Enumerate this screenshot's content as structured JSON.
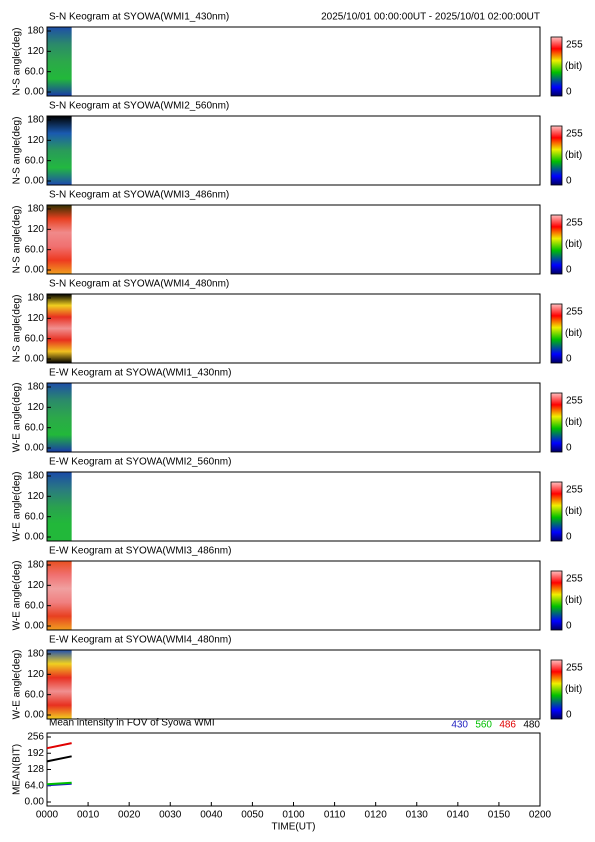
{
  "chart_data": [
    {
      "type": "keogram",
      "title": "S-N Keogram at SYOWA(WMI1_430nm)",
      "time_range": "2025/10/01 00:00:00UT - 2025/10/01 02:00:00UT",
      "ylabel": "N-S angle(deg)",
      "ylim": [
        0,
        180
      ],
      "yticks": [
        {
          "value": 0,
          "label": "0.00"
        },
        {
          "value": 60,
          "label": "60.0"
        },
        120,
        180
      ],
      "xlim": [
        0,
        120
      ],
      "x": [
        0,
        6
      ],
      "colors": [
        "#1e4ea8",
        "#2b8a6a",
        "#2ca84a",
        "#22b83a",
        "#1a3aa8"
      ],
      "clabel": "(bit)",
      "cticks": [
        0,
        255
      ]
    },
    {
      "type": "keogram",
      "title": "S-N Keogram at SYOWA(WMI2_560nm)",
      "ylabel": "N-S angle(deg)",
      "ylim": [
        0,
        180
      ],
      "yticks": [
        {
          "value": 0,
          "label": "0.00"
        },
        {
          "value": 60,
          "label": "60.0"
        },
        120,
        180
      ],
      "xlim": [
        0,
        120
      ],
      "x": [
        0,
        6
      ],
      "colors": [
        "#000000",
        "#1a5ab0",
        "#2a9a5a",
        "#22b840",
        "#1e48b0"
      ],
      "clabel": "(bit)",
      "cticks": [
        0,
        255
      ]
    },
    {
      "type": "keogram",
      "title": "S-N Keogram at SYOWA(WMI3_486nm)",
      "ylabel": "N-S angle(deg)",
      "ylim": [
        0,
        180
      ],
      "yticks": [
        {
          "value": 0,
          "label": "0.00"
        },
        {
          "value": 60,
          "label": "60.0"
        },
        120,
        180
      ],
      "xlim": [
        0,
        120
      ],
      "x": [
        0,
        6
      ],
      "colors": [
        "#303000",
        "#e84020",
        "#f08a8a",
        "#f07070",
        "#ee3a20",
        "#f0a020"
      ],
      "clabel": "(bit)",
      "cticks": [
        0,
        255
      ]
    },
    {
      "type": "keogram",
      "title": "S-N Keogram at SYOWA(WMI4_480nm)",
      "ylabel": "N-S angle(deg)",
      "ylim": [
        0,
        180
      ],
      "yticks": [
        {
          "value": 0,
          "label": "0.00"
        },
        {
          "value": 60,
          "label": "60.0"
        },
        120,
        180
      ],
      "xlim": [
        0,
        120
      ],
      "x": [
        0,
        6
      ],
      "colors": [
        "#000000",
        "#f0d020",
        "#e83020",
        "#f09090",
        "#e83020",
        "#f0c020",
        "#000000"
      ],
      "clabel": "(bit)",
      "cticks": [
        0,
        255
      ]
    },
    {
      "type": "keogram",
      "title": "E-W Keogram at SYOWA(WMI1_430nm)",
      "ylabel": "W-E angle(deg)",
      "ylim": [
        0,
        180
      ],
      "yticks": [
        {
          "value": 0,
          "label": "0.00"
        },
        {
          "value": 60,
          "label": "60.0"
        },
        120,
        180
      ],
      "xlim": [
        0,
        120
      ],
      "x": [
        0,
        6
      ],
      "colors": [
        "#1e4ea8",
        "#2b8a6a",
        "#2ca84a",
        "#22b83a",
        "#1a3aa8"
      ],
      "clabel": "(bit)",
      "cticks": [
        0,
        255
      ]
    },
    {
      "type": "keogram",
      "title": "E-W Keogram at SYOWA(WMI2_560nm)",
      "ylabel": "W-E angle(deg)",
      "ylim": [
        0,
        180
      ],
      "yticks": [
        {
          "value": 0,
          "label": "0.00"
        },
        {
          "value": 60,
          "label": "60.0"
        },
        120,
        180
      ],
      "xlim": [
        0,
        120
      ],
      "x": [
        0,
        6
      ],
      "colors": [
        "#1a4aa8",
        "#2a7a80",
        "#2aa050",
        "#22b83a",
        "#22b83a"
      ],
      "clabel": "(bit)",
      "cticks": [
        0,
        255
      ]
    },
    {
      "type": "keogram",
      "title": "E-W Keogram at SYOWA(WMI3_486nm)",
      "ylabel": "W-E angle(deg)",
      "ylim": [
        0,
        180
      ],
      "yticks": [
        {
          "value": 0,
          "label": "0.00"
        },
        {
          "value": 60,
          "label": "60.0"
        },
        120,
        180
      ],
      "xlim": [
        0,
        120
      ],
      "x": [
        0,
        6
      ],
      "colors": [
        "#e85020",
        "#f07070",
        "#f0a0a0",
        "#f08080",
        "#e84020",
        "#f0a020"
      ],
      "clabel": "(bit)",
      "cticks": [
        0,
        255
      ]
    },
    {
      "type": "keogram",
      "title": "E-W Keogram at SYOWA(WMI4_480nm)",
      "ylabel": "W-E angle(deg)",
      "ylim": [
        0,
        180
      ],
      "yticks": [
        {
          "value": 0,
          "label": "0.00"
        },
        {
          "value": 60,
          "label": "60.0"
        },
        120,
        180
      ],
      "xlim": [
        0,
        120
      ],
      "x": [
        0,
        6
      ],
      "colors": [
        "#2050b0",
        "#f0d020",
        "#e83020",
        "#f09090",
        "#e83020",
        "#f0d020"
      ],
      "clabel": "(bit)",
      "cticks": [
        0,
        255
      ]
    },
    {
      "type": "line",
      "title": "Mean intensity in FOV of Syowa WMI",
      "xlabel": "TIME(UT)",
      "ylabel": "MEAN(BIT)",
      "xlim": [
        0,
        120
      ],
      "xticks": [
        {
          "value": 0,
          "label": "0000"
        },
        {
          "value": 10,
          "label": "0010"
        },
        {
          "value": 20,
          "label": "0020"
        },
        {
          "value": 30,
          "label": "0030"
        },
        {
          "value": 40,
          "label": "0040"
        },
        {
          "value": 50,
          "label": "0050"
        },
        {
          "value": 60,
          "label": "0100"
        },
        {
          "value": 70,
          "label": "0110"
        },
        {
          "value": 80,
          "label": "0120"
        },
        {
          "value": 90,
          "label": "0130"
        },
        {
          "value": 100,
          "label": "0140"
        },
        {
          "value": 110,
          "label": "0150"
        },
        {
          "value": 120,
          "label": "0200"
        }
      ],
      "ylim": [
        0,
        256
      ],
      "yticks": [
        {
          "value": 0,
          "label": "0.00"
        },
        {
          "value": 64,
          "label": "64.0"
        },
        128,
        192,
        256
      ],
      "x": [
        0,
        6
      ],
      "series": [
        {
          "name": "430",
          "color": "#2020c0",
          "values": [
            66,
            72
          ]
        },
        {
          "name": "560",
          "color": "#00c000",
          "values": [
            70,
            76
          ]
        },
        {
          "name": "486",
          "color": "#e00000",
          "values": [
            212,
            232
          ]
        },
        {
          "name": "480",
          "color": "#000000",
          "values": [
            160,
            180
          ]
        }
      ]
    }
  ]
}
